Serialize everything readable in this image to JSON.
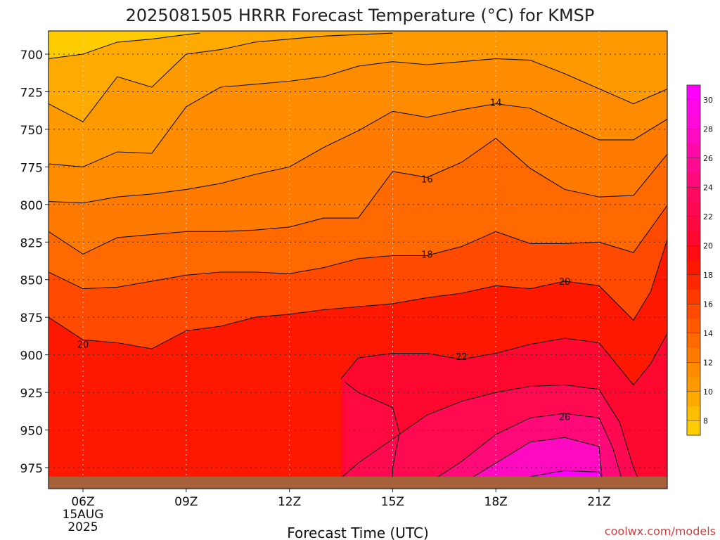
{
  "chart_data": {
    "type": "heatmap",
    "title": "2025081505 HRRR Forecast Temperature (°C) for KMSP",
    "xlabel": "Forecast Time (UTC)",
    "ylabel": "",
    "x_ticks": [
      {
        "hour": 6,
        "label": "06Z",
        "sub1": "15AUG",
        "sub2": "2025"
      },
      {
        "hour": 9,
        "label": "09Z"
      },
      {
        "hour": 12,
        "label": "12Z"
      },
      {
        "hour": 15,
        "label": "15Z"
      },
      {
        "hour": 18,
        "label": "18Z"
      },
      {
        "hour": 21,
        "label": "21Z"
      }
    ],
    "xlim_hours": [
      5,
      23
    ],
    "y_ticks": [
      700,
      725,
      750,
      775,
      800,
      825,
      850,
      875,
      900,
      925,
      950,
      975
    ],
    "ylim_hpa": [
      686,
      987
    ],
    "grid": "dotted",
    "colorbar": {
      "ticks": [
        8,
        10,
        12,
        14,
        16,
        18,
        20,
        22,
        24,
        26,
        28,
        30
      ],
      "levels": [
        {
          "lo": 7,
          "hi": 8,
          "color": "#ffcc00"
        },
        {
          "lo": 8,
          "hi": 9,
          "color": "#ffbe00"
        },
        {
          "lo": 9,
          "hi": 10,
          "color": "#ffaa00"
        },
        {
          "lo": 10,
          "hi": 11,
          "color": "#ff9900"
        },
        {
          "lo": 11,
          "hi": 12,
          "color": "#ff8c00"
        },
        {
          "lo": 12,
          "hi": 13,
          "color": "#ff7a00"
        },
        {
          "lo": 13,
          "hi": 14,
          "color": "#ff6900"
        },
        {
          "lo": 14,
          "hi": 15,
          "color": "#ff5a00"
        },
        {
          "lo": 15,
          "hi": 16,
          "color": "#ff4a00"
        },
        {
          "lo": 16,
          "hi": 17,
          "color": "#ff3a00"
        },
        {
          "lo": 17,
          "hi": 18,
          "color": "#ff2800"
        },
        {
          "lo": 18,
          "hi": 19,
          "color": "#ff1800"
        },
        {
          "lo": 19,
          "hi": 20,
          "color": "#ff0c10"
        },
        {
          "lo": 20,
          "hi": 21,
          "color": "#ff0830"
        },
        {
          "lo": 21,
          "hi": 22,
          "color": "#ff0a40"
        },
        {
          "lo": 22,
          "hi": 23,
          "color": "#ff0a50"
        },
        {
          "lo": 23,
          "hi": 24,
          "color": "#ff0a60"
        },
        {
          "lo": 24,
          "hi": 25,
          "color": "#ff0a78"
        },
        {
          "lo": 25,
          "hi": 26,
          "color": "#ff0a90"
        },
        {
          "lo": 26,
          "hi": 27,
          "color": "#ff0aa8"
        },
        {
          "lo": 27,
          "hi": 28,
          "color": "#ff0ac0"
        },
        {
          "lo": 28,
          "hi": 29,
          "color": "#ff0ad8"
        },
        {
          "lo": 29,
          "hi": 30,
          "color": "#ff08e8"
        },
        {
          "lo": 30,
          "hi": 31,
          "color": "#ff00ff"
        }
      ]
    },
    "contour_labels": [
      {
        "text": "14",
        "hour": 18.0,
        "p": 732
      },
      {
        "text": "16",
        "hour": 16.0,
        "p": 783
      },
      {
        "text": "18",
        "hour": 16.0,
        "p": 833
      },
      {
        "text": "20",
        "hour": 20.0,
        "p": 851
      },
      {
        "text": "20",
        "hour": 6.0,
        "p": 893
      },
      {
        "text": "22",
        "hour": 17.0,
        "p": 901
      },
      {
        "text": "26",
        "hour": 20.0,
        "p": 941
      }
    ],
    "isotherms": [
      {
        "value": 9,
        "points": [
          [
            5,
            703
          ],
          [
            6,
            700
          ],
          [
            7,
            692
          ],
          [
            8,
            690
          ],
          [
            9,
            687
          ],
          [
            9.4,
            686
          ]
        ]
      },
      {
        "value": 10,
        "points": [
          [
            5,
            733
          ],
          [
            6,
            745
          ],
          [
            7,
            715
          ],
          [
            8,
            722
          ],
          [
            9,
            700
          ],
          [
            10,
            697
          ],
          [
            11,
            692
          ],
          [
            12,
            690
          ],
          [
            13,
            688
          ],
          [
            14,
            687
          ],
          [
            15,
            686
          ]
        ]
      },
      {
        "value": 11,
        "points": [
          [
            5,
            773
          ],
          [
            6,
            775
          ],
          [
            7,
            765
          ],
          [
            8,
            766
          ],
          [
            9,
            735
          ],
          [
            10,
            722
          ],
          [
            11,
            720
          ],
          [
            12,
            718
          ],
          [
            13,
            715
          ],
          [
            14,
            708
          ],
          [
            15,
            705
          ],
          [
            16,
            707
          ],
          [
            17,
            705
          ],
          [
            18,
            703
          ],
          [
            19,
            704
          ],
          [
            20,
            713
          ],
          [
            21,
            723
          ],
          [
            22,
            733
          ],
          [
            23,
            723
          ]
        ]
      },
      {
        "value": 12,
        "points": [
          [
            5,
            798
          ],
          [
            6,
            799
          ],
          [
            7,
            795
          ],
          [
            8,
            793
          ],
          [
            9,
            790
          ],
          [
            10,
            786
          ],
          [
            11,
            780
          ],
          [
            12,
            775
          ],
          [
            13,
            762
          ],
          [
            14,
            751
          ],
          [
            15,
            738
          ],
          [
            16,
            742
          ],
          [
            17,
            737
          ],
          [
            18,
            733
          ],
          [
            19,
            736
          ],
          [
            20,
            747
          ],
          [
            21,
            757
          ],
          [
            22,
            757
          ],
          [
            23,
            743
          ]
        ]
      },
      {
        "value": 13,
        "points": [
          [
            5,
            818
          ],
          [
            6,
            833
          ],
          [
            7,
            822
          ],
          [
            8,
            820
          ],
          [
            9,
            818
          ],
          [
            10,
            818
          ],
          [
            11,
            817
          ],
          [
            12,
            815
          ],
          [
            13,
            809
          ],
          [
            14,
            809
          ],
          [
            15,
            778
          ],
          [
            16,
            782
          ],
          [
            17,
            772
          ],
          [
            18,
            756
          ],
          [
            19,
            776
          ],
          [
            20,
            790
          ],
          [
            21,
            795
          ],
          [
            22,
            794
          ],
          [
            23,
            766
          ]
        ]
      },
      {
        "value": 14,
        "points": [
          [
            5,
            845
          ],
          [
            6,
            856
          ],
          [
            7,
            855
          ],
          [
            8,
            851
          ],
          [
            9,
            847
          ],
          [
            10,
            845
          ],
          [
            11,
            845
          ],
          [
            12,
            846
          ],
          [
            13,
            842
          ],
          [
            14,
            836
          ],
          [
            15,
            834
          ],
          [
            16,
            834
          ],
          [
            17,
            828
          ],
          [
            18,
            818
          ],
          [
            19,
            826
          ],
          [
            20,
            826
          ],
          [
            21,
            825
          ],
          [
            22,
            832
          ],
          [
            23,
            800
          ]
        ]
      },
      {
        "value": 15,
        "points": [
          [
            5,
            875
          ],
          [
            6,
            890
          ],
          [
            7,
            892
          ],
          [
            8,
            896
          ],
          [
            9,
            884
          ],
          [
            10,
            881
          ],
          [
            11,
            875
          ],
          [
            12,
            873
          ],
          [
            13,
            870
          ],
          [
            14,
            868
          ],
          [
            15,
            866
          ],
          [
            16,
            862
          ],
          [
            17,
            859
          ],
          [
            18,
            854
          ],
          [
            19,
            856
          ],
          [
            20,
            851
          ],
          [
            21,
            854
          ],
          [
            22,
            877
          ],
          [
            22.5,
            858
          ],
          [
            23,
            822
          ]
        ]
      },
      {
        "value": 16,
        "points": [
          [
            13.5,
            916
          ],
          [
            14,
            902
          ],
          [
            15,
            899
          ],
          [
            16,
            899
          ],
          [
            17,
            903
          ],
          [
            18,
            899
          ],
          [
            19,
            893
          ],
          [
            20,
            889
          ],
          [
            21,
            892
          ],
          [
            22,
            920
          ],
          [
            22.5,
            906
          ],
          [
            23,
            885
          ]
        ]
      },
      {
        "value": 17,
        "points": [
          [
            13.6,
            918
          ],
          [
            14,
            925
          ],
          [
            15,
            935
          ],
          [
            15.2,
            952
          ],
          [
            15.0,
            975
          ],
          [
            15.0,
            986
          ]
        ]
      },
      {
        "value": 18,
        "points": [
          [
            13.3,
            986
          ],
          [
            14,
            972
          ],
          [
            15,
            956
          ],
          [
            16,
            940
          ],
          [
            17,
            931
          ],
          [
            18,
            925
          ],
          [
            19,
            921
          ],
          [
            20,
            920
          ],
          [
            21,
            923
          ],
          [
            21.6,
            945
          ],
          [
            22,
            975
          ],
          [
            22.2,
            986
          ]
        ]
      },
      {
        "value": 19,
        "points": [
          [
            16,
            986
          ],
          [
            17,
            971
          ],
          [
            18,
            953
          ],
          [
            19,
            942
          ],
          [
            20,
            939
          ],
          [
            21,
            942
          ],
          [
            21.4,
            962
          ],
          [
            21.7,
            986
          ]
        ]
      },
      {
        "value": 20,
        "points": [
          [
            17,
            986
          ],
          [
            18,
            972
          ],
          [
            19,
            958
          ],
          [
            20,
            955
          ],
          [
            21,
            961
          ],
          [
            21.1,
            986
          ]
        ]
      },
      {
        "value": 21,
        "points": [
          [
            18.6,
            986
          ],
          [
            19,
            981
          ],
          [
            20,
            977
          ],
          [
            21,
            978
          ],
          [
            21.2,
            986
          ]
        ]
      }
    ],
    "ground_level": {
      "p": 981,
      "color": "#a6603a"
    },
    "credit": "coolwx.com/models"
  }
}
